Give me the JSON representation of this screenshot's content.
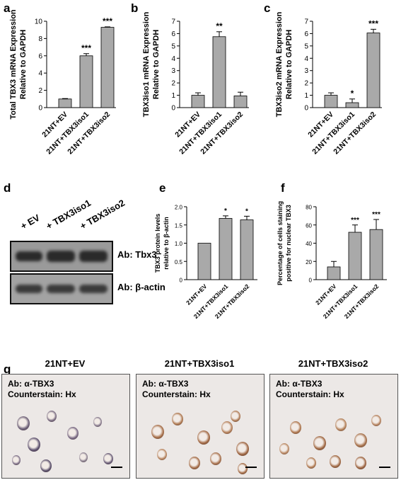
{
  "panels": {
    "a": "a",
    "b": "b",
    "c": "c",
    "d": "d",
    "e": "e",
    "f": "f",
    "g": "g"
  },
  "chart_data": [
    {
      "id": "a",
      "type": "bar",
      "categories": [
        "21NT+EV",
        "21NT+TBX3iso1",
        "21NT+TBX3iso2"
      ],
      "values": [
        1.0,
        6.0,
        9.3
      ],
      "errors": [
        0.05,
        0.25,
        0.05
      ],
      "significance": [
        "",
        "***",
        "***"
      ],
      "ylabel": [
        "Total TBX3 mRNA Expression",
        "Relative to GAPDH"
      ],
      "ylim": [
        0,
        10
      ],
      "yticks": [
        "0",
        "2",
        "4",
        "6",
        "8",
        "10"
      ],
      "ytick_values": [
        0,
        2,
        4,
        6,
        8,
        10
      ]
    },
    {
      "id": "b",
      "type": "bar",
      "categories": [
        "21NT+EV",
        "21NT+TBX3iso1",
        "21NT+TBX3iso2"
      ],
      "values": [
        1.0,
        5.75,
        0.95
      ],
      "errors": [
        0.2,
        0.4,
        0.3
      ],
      "significance": [
        "",
        "**",
        ""
      ],
      "ylabel": [
        "TBX3iso1 mRNA Expression",
        "Relative to GAPDH"
      ],
      "ylim": [
        0,
        7
      ],
      "yticks": [
        "0",
        "1",
        "2",
        "3",
        "4",
        "5",
        "6",
        "7"
      ],
      "ytick_values": [
        0,
        1,
        2,
        3,
        4,
        5,
        6,
        7
      ]
    },
    {
      "id": "c",
      "type": "bar",
      "categories": [
        "21NT+EV",
        "21NT+TBX3iso1",
        "21NT+TBX3iso2"
      ],
      "values": [
        1.0,
        0.4,
        6.05
      ],
      "errors": [
        0.2,
        0.3,
        0.3
      ],
      "significance": [
        "",
        "*",
        "***"
      ],
      "ylabel": [
        "TBX3iso2 mRNA Expression",
        "Relative to GAPDH"
      ],
      "ylim": [
        0,
        7
      ],
      "yticks": [
        "0",
        "1",
        "2",
        "3",
        "4",
        "5",
        "6",
        "7"
      ],
      "ytick_values": [
        0,
        1,
        2,
        3,
        4,
        5,
        6,
        7
      ]
    },
    {
      "id": "e",
      "type": "bar",
      "categories": [
        "21NT+EV",
        "21NT+TBX3iso1",
        "21NT+TBX3iso2"
      ],
      "values": [
        1.0,
        1.68,
        1.64
      ],
      "errors": [
        0.0,
        0.07,
        0.1
      ],
      "significance": [
        "",
        "*",
        "*"
      ],
      "ylabel": [
        "TBX3 protein levels",
        "relative to β-actin"
      ],
      "ylim": [
        0,
        2.0
      ],
      "yticks": [
        "0",
        "0.5",
        "1.0",
        "1.5",
        "2.0"
      ],
      "ytick_values": [
        0,
        0.5,
        1.0,
        1.5,
        2.0
      ]
    },
    {
      "id": "f",
      "type": "bar",
      "categories": [
        "21NT+EV",
        "21NT+TBX3iso1",
        "21NT+TBX3iso2"
      ],
      "values": [
        14,
        52,
        55
      ],
      "errors": [
        6,
        8,
        11
      ],
      "significance": [
        "",
        "***",
        "***"
      ],
      "ylabel": [
        "Percentage of cells staining",
        "positive for nuclear TBX3"
      ],
      "ylim": [
        0,
        80
      ],
      "yticks": [
        "0",
        "20",
        "40",
        "60",
        "80"
      ],
      "ytick_values": [
        0,
        20,
        40,
        60,
        80
      ]
    }
  ],
  "blot": {
    "lanes": [
      "+ EV",
      "+ TBX3iso1",
      "+ TBX3iso2"
    ],
    "tbx3_label": "Ab: Tbx3",
    "actin_label": "Ab: β-actin"
  },
  "micrographs": [
    {
      "title": "21NT+EV",
      "ab": "Ab: α-TBX3",
      "counterstain": "Counterstain: Hx"
    },
    {
      "title": "21NT+TBX3iso1",
      "ab": "Ab: α-TBX3",
      "counterstain": "Counterstain: Hx"
    },
    {
      "title": "21NT+TBX3iso2",
      "ab": "Ab: α-TBX3",
      "counterstain": "Counterstain: Hx"
    }
  ]
}
